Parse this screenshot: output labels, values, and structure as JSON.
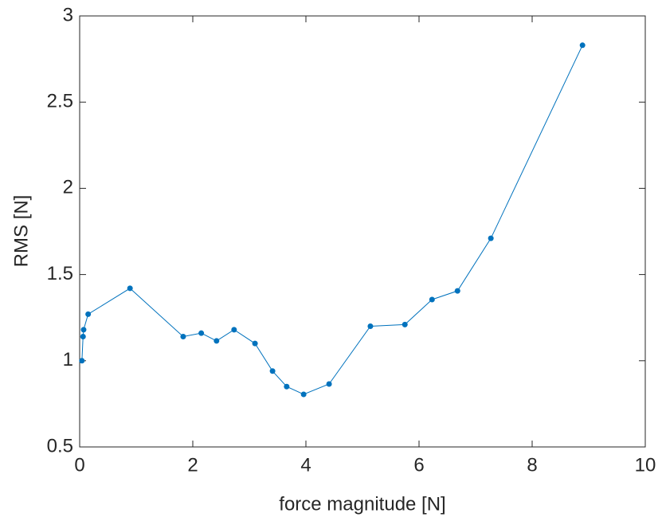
{
  "chart_data": {
    "type": "line",
    "xlabel": "force magnitude [N]",
    "ylabel": "RMS [N]",
    "x": [
      0.04,
      0.06,
      0.07,
      0.15,
      0.89,
      1.83,
      2.15,
      2.42,
      2.73,
      3.1,
      3.41,
      3.66,
      3.96,
      4.41,
      5.14,
      5.75,
      6.23,
      6.68,
      7.27,
      8.89
    ],
    "series": [
      {
        "color": "#0072bd",
        "values": [
          1.0,
          1.14,
          1.18,
          1.27,
          1.42,
          1.14,
          1.16,
          1.115,
          1.18,
          1.1,
          0.94,
          0.85,
          0.805,
          0.865,
          1.2,
          1.21,
          1.355,
          1.405,
          1.71,
          2.83
        ]
      }
    ],
    "xlim": [
      0,
      10
    ],
    "xticks": [
      0,
      2,
      4,
      6,
      8,
      10
    ],
    "ylim": [
      0.5,
      3
    ],
    "yticks": [
      0.5,
      1,
      1.5,
      2,
      2.5,
      3
    ]
  }
}
